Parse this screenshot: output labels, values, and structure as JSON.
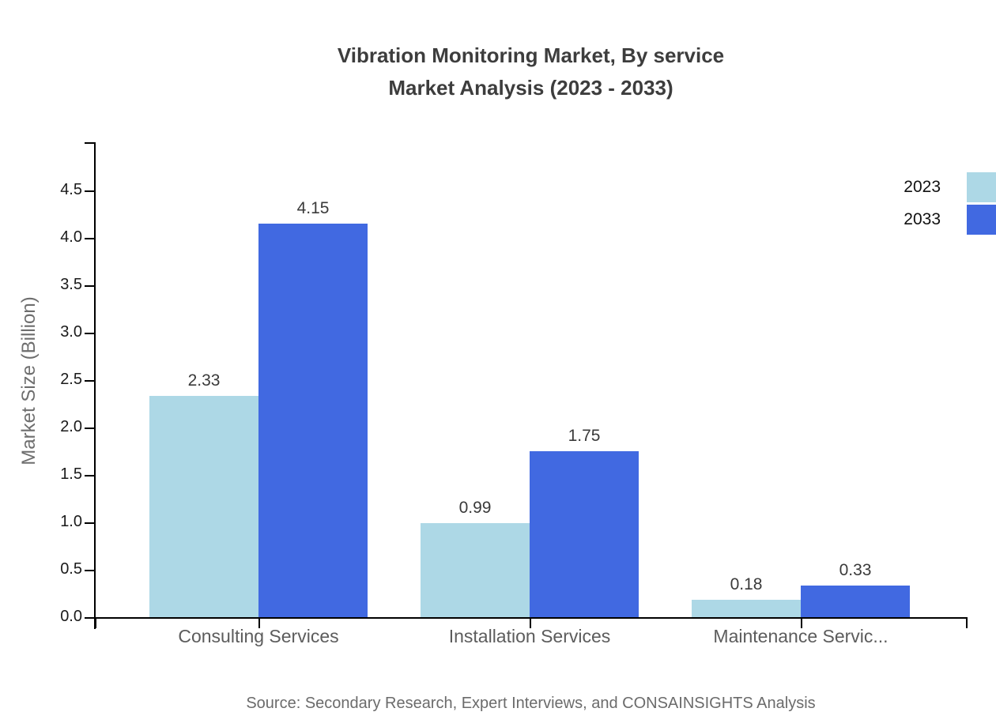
{
  "chart_data": {
    "type": "bar",
    "title_lines": [
      "Vibration Monitoring Market, By service",
      "Market Analysis (2023 - 2033)"
    ],
    "categories": [
      "Consulting Services",
      "Installation Services",
      "Maintenance Servic..."
    ],
    "series": [
      {
        "name": "2023",
        "color": "#ADD8E6",
        "values": [
          2.33,
          0.99,
          0.18
        ]
      },
      {
        "name": "2033",
        "color": "#4169E1",
        "values": [
          4.15,
          1.75,
          0.33
        ]
      }
    ],
    "xlabel": "",
    "ylabel": "Market Size (Billion)",
    "ylim": [
      0,
      4.5
    ],
    "ytick_step": 0.5,
    "grid": false,
    "value_labels": true,
    "legend_position": "top-right",
    "source_note": "Source: Secondary Research, Expert Interviews, and CONSAINSIGHTS Analysis"
  }
}
